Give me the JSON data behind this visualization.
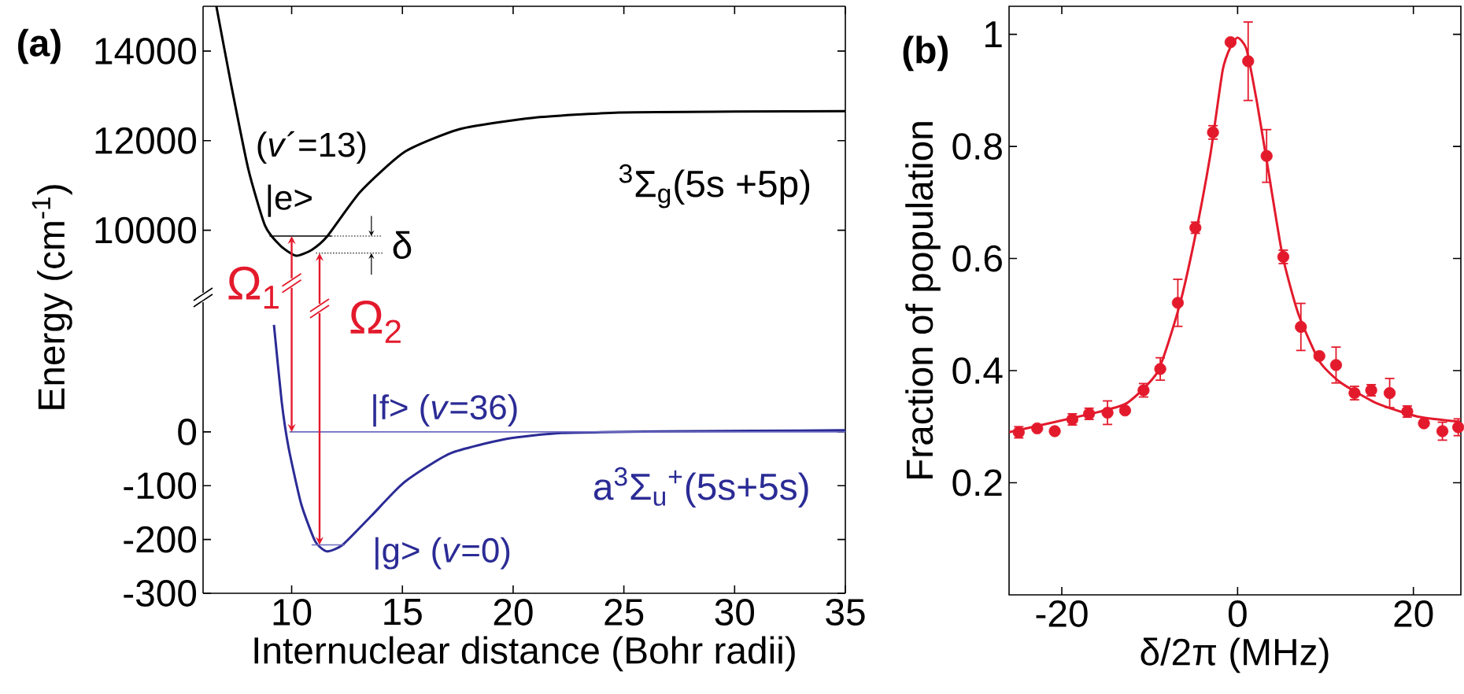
{
  "chart_data": [
    {
      "type": "line",
      "title": "(a)",
      "ylabel": "Energy (cm$^{-1}$)",
      "xlim": [
        6,
        35
      ],
      "xticks": [
        10,
        15,
        20,
        25,
        30,
        35
      ],
      "ylim": [
        8500,
        15000
      ],
      "yticks": [
        10000,
        12000,
        14000
      ],
      "tick_labels": "y",
      "series": [
        {
          "color": "#000000",
          "line_style": "solid",
          "x": [
            6.6,
            7.26,
            8.04,
            8.8,
            9.5,
            10.2,
            10.9,
            11.6,
            13.1,
            15.1,
            17.6,
            20.9,
            24.8,
            30,
            35
          ],
          "values": [
            15000,
            13270,
            11370,
            10100,
            9650,
            9430,
            9560,
            9860,
            10860,
            11750,
            12260,
            12510,
            12630,
            12650,
            12660
          ]
        },
        {
          "color": "#000000",
          "line_style": "solid",
          "x": [
            9.0,
            11.8
          ],
          "values": [
            9870,
            9870
          ]
        },
        {
          "color": "#555555",
          "line_style": "dotted",
          "x": [
            11.8,
            14.1
          ],
          "values": [
            9870,
            9870
          ]
        },
        {
          "color": "#555555",
          "line_style": "dotted",
          "x": [
            11.1,
            14.1
          ],
          "values": [
            9490,
            9490
          ]
        }
      ],
      "annotations": [
        "(*v*´=13)",
        "|e>",
        "δ",
        {
          "text": "Ω$_{1}$",
          "x": 10.0,
          "y": 9870
        },
        "$^{3}$Σ$_{g}$(5s +5p)"
      ]
    },
    {
      "type": "line",
      "xlabel": "Internuclear distance (Bohr radii)",
      "xlim": [
        6,
        35
      ],
      "xticks": [
        10,
        15,
        20,
        25,
        30,
        35
      ],
      "ylim": [
        -300,
        250
      ],
      "yticks": [
        0,
        -100,
        -200,
        -300
      ],
      "series": [
        {
          "color": "#2b2b96",
          "line_style": "solid",
          "x": [
            9.2,
            9.55,
            9.86,
            10.43,
            11.07,
            11.6,
            12.3,
            13.6,
            15.1,
            17.15,
            19.7,
            22.2,
            26.8,
            35
          ],
          "values": [
            199,
            56,
            -29,
            -134,
            -204,
            -222,
            -210,
            -156,
            -93,
            -40,
            -13,
            -2,
            1,
            3
          ]
        },
        {
          "color": "#6b6bbf",
          "line_style": "solid",
          "x": [
            9.9,
            35
          ],
          "values": [
            0,
            0
          ]
        },
        {
          "color": "#6b6bbf",
          "line_style": "solid",
          "x": [
            10.9,
            12.4
          ],
          "values": [
            -210,
            -210
          ]
        }
      ],
      "annotations": [
        {
          "text": "Ω$_{2}$",
          "x": 11.26,
          "y": -210
        },
        "|f> (*v*=36)",
        "a$^{3}$Σ$_{u}$$^{+}$(5s+5s)",
        "|g> (*v*=0)"
      ]
    },
    {
      "type": "scatter",
      "title": "(b)",
      "xlabel": "δ/2π (MHz)",
      "ylabel": "Fraction of population",
      "xlim": [
        -26,
        25.4
      ],
      "xticks": [
        -20,
        0,
        20
      ],
      "ylim": [
        0,
        1.05
      ],
      "yticks": [
        0.2,
        0.4,
        0.6,
        0.8,
        1
      ],
      "series": [
        {
          "color": "#e31a2c",
          "marker": "circle",
          "x": [
            -24.9,
            -22.8,
            -20.8,
            -18.8,
            -16.9,
            -14.8,
            -12.8,
            -10.7,
            -8.8,
            -6.8,
            -4.8,
            -2.8,
            -0.8,
            1.2,
            3.3,
            5.2,
            7.2,
            9.3,
            11.2,
            13.3,
            15.2,
            17.3,
            19.3,
            21.2,
            23.3,
            25.1
          ],
          "values": [
            0.29,
            0.297,
            0.292,
            0.313,
            0.323,
            0.325,
            0.329,
            0.365,
            0.403,
            0.521,
            0.655,
            0.825,
            0.986,
            0.952,
            0.783,
            0.603,
            0.478,
            0.426,
            0.41,
            0.36,
            0.365,
            0.36,
            0.327,
            0.306,
            0.292,
            0.299
          ],
          "errors": [
            0.01,
            null,
            null,
            0.01,
            0.01,
            0.021,
            null,
            0.012,
            0.02,
            0.042,
            0.01,
            0.012,
            null,
            0.07,
            0.047,
            0.012,
            0.042,
            null,
            0.032,
            0.012,
            0.01,
            0.026,
            0.01,
            null,
            0.016,
            0.015
          ]
        },
        {
          "type": "line",
          "color": "#e31a2c",
          "line_style": "solid",
          "x": [
            -26,
            -16.7,
            -12.6,
            -9.1,
            -6.7,
            -4.9,
            -3.1,
            -1.7,
            -0.8,
            0,
            1.0,
            2.2,
            3.4,
            5.1,
            6.9,
            9.3,
            11.7,
            15.8,
            20.5,
            25.3
          ],
          "values": [
            0.29,
            0.323,
            0.342,
            0.398,
            0.511,
            0.634,
            0.785,
            0.936,
            0.978,
            0.994,
            0.974,
            0.879,
            0.766,
            0.606,
            0.502,
            0.417,
            0.379,
            0.342,
            0.318,
            0.309
          ]
        }
      ]
    }
  ]
}
